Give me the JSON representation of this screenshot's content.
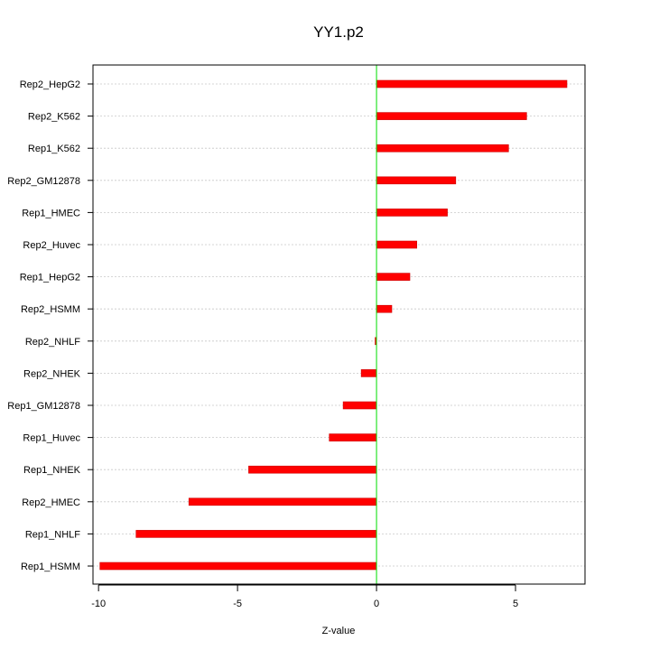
{
  "chart_data": {
    "type": "bar",
    "orientation": "horizontal",
    "title": "YY1.p2",
    "xlabel": "Z-value",
    "ylabel": "",
    "xlim": [
      -10.2,
      7.5
    ],
    "xticks": [
      -10,
      -5,
      0,
      5
    ],
    "xtick_labels": [
      "-10",
      "-5",
      "0",
      "5"
    ],
    "categories": [
      "Rep2_HepG2",
      "Rep2_K562",
      "Rep1_K562",
      "Rep2_GM12878",
      "Rep1_HMEC",
      "Rep2_Huvec",
      "Rep1_HepG2",
      "Rep2_HSMM",
      "Rep2_NHLF",
      "Rep2_NHEK",
      "Rep1_GM12878",
      "Rep1_Huvec",
      "Rep1_NHEK",
      "Rep2_HMEC",
      "Rep1_NHLF",
      "Rep1_HSMM"
    ],
    "values": [
      6.85,
      5.4,
      4.75,
      2.85,
      2.55,
      1.45,
      1.2,
      0.55,
      -0.05,
      -0.55,
      -1.2,
      -1.7,
      -4.6,
      -6.75,
      -8.65,
      -9.95
    ],
    "bar_color": "#ff0000",
    "zero_line_color": "#00dd00",
    "grid": true
  }
}
